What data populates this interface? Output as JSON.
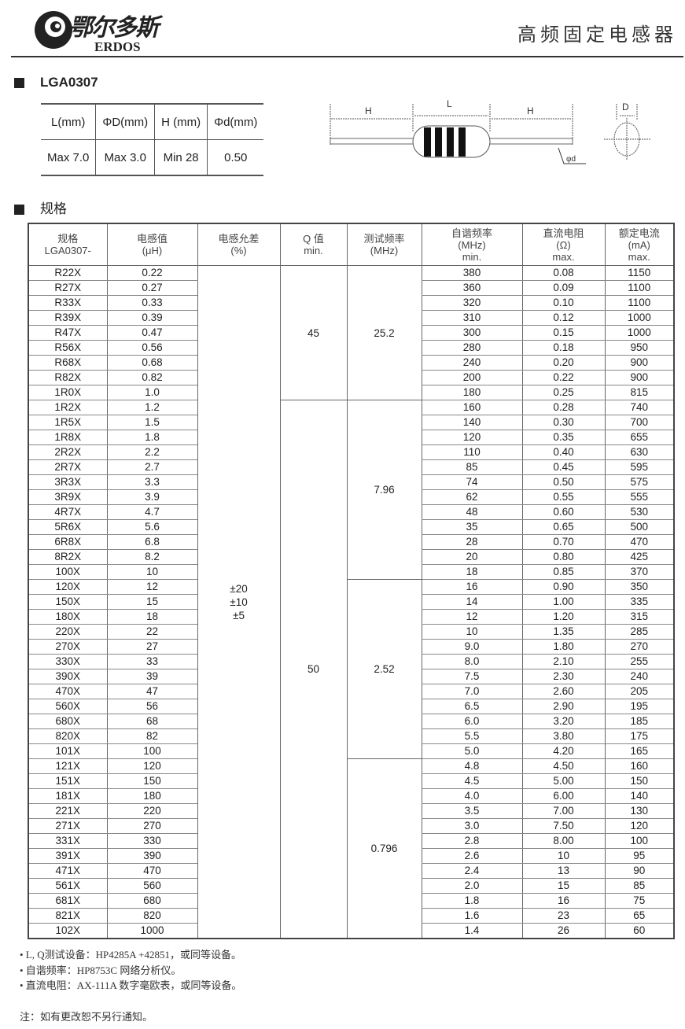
{
  "header": {
    "logo_cn": "鄂尔多斯",
    "logo_en": "ERDOS",
    "title": "高频固定电感器"
  },
  "section1": {
    "title": "LGA0307",
    "dims": {
      "headers": [
        "L(mm)",
        "ΦD(mm)",
        "H (mm)",
        "Φd(mm)"
      ],
      "values": [
        "Max 7.0",
        "Max 3.0",
        "Min 28",
        "0.50"
      ]
    },
    "diagram": {
      "label_h": "H",
      "label_l": "L",
      "label_d": "D",
      "label_wire": "φd"
    }
  },
  "section2": {
    "title": "规格"
  },
  "spec": {
    "headers": [
      [
        "规格",
        "LGA0307-"
      ],
      [
        "电感值",
        "(μH)"
      ],
      [
        "电感允差",
        "(%)"
      ],
      [
        "Q 值",
        "min."
      ],
      [
        "测试频率",
        "(MHz)"
      ],
      [
        "自谐频率",
        "(MHz)",
        "min."
      ],
      [
        "直流电阻",
        "(Ω)",
        "max."
      ],
      [
        "额定电流",
        "(mA)",
        "max."
      ]
    ],
    "tolerance": [
      "±20",
      "±10",
      "±5"
    ],
    "q_groups": [
      {
        "value": "45",
        "rows": 9
      },
      {
        "value": "50",
        "rows": 36
      }
    ],
    "freq_groups": [
      {
        "value": "25.2",
        "rows": 9
      },
      {
        "value": "7.96",
        "rows": 12
      },
      {
        "value": "2.52",
        "rows": 12
      },
      {
        "value": "0.796",
        "rows": 12
      }
    ],
    "rows": [
      [
        "R22X",
        "0.22",
        "380",
        "0.08",
        "1150"
      ],
      [
        "R27X",
        "0.27",
        "360",
        "0.09",
        "1100"
      ],
      [
        "R33X",
        "0.33",
        "320",
        "0.10",
        "1100"
      ],
      [
        "R39X",
        "0.39",
        "310",
        "0.12",
        "1000"
      ],
      [
        "R47X",
        "0.47",
        "300",
        "0.15",
        "1000"
      ],
      [
        "R56X",
        "0.56",
        "280",
        "0.18",
        "950"
      ],
      [
        "R68X",
        "0.68",
        "240",
        "0.20",
        "900"
      ],
      [
        "R82X",
        "0.82",
        "200",
        "0.22",
        "900"
      ],
      [
        "1R0X",
        "1.0",
        "180",
        "0.25",
        "815"
      ],
      [
        "1R2X",
        "1.2",
        "160",
        "0.28",
        "740"
      ],
      [
        "1R5X",
        "1.5",
        "140",
        "0.30",
        "700"
      ],
      [
        "1R8X",
        "1.8",
        "120",
        "0.35",
        "655"
      ],
      [
        "2R2X",
        "2.2",
        "110",
        "0.40",
        "630"
      ],
      [
        "2R7X",
        "2.7",
        "85",
        "0.45",
        "595"
      ],
      [
        "3R3X",
        "3.3",
        "74",
        "0.50",
        "575"
      ],
      [
        "3R9X",
        "3.9",
        "62",
        "0.55",
        "555"
      ],
      [
        "4R7X",
        "4.7",
        "48",
        "0.60",
        "530"
      ],
      [
        "5R6X",
        "5.6",
        "35",
        "0.65",
        "500"
      ],
      [
        "6R8X",
        "6.8",
        "28",
        "0.70",
        "470"
      ],
      [
        "8R2X",
        "8.2",
        "20",
        "0.80",
        "425"
      ],
      [
        "100X",
        "10",
        "18",
        "0.85",
        "370"
      ],
      [
        "120X",
        "12",
        "16",
        "0.90",
        "350"
      ],
      [
        "150X",
        "15",
        "14",
        "1.00",
        "335"
      ],
      [
        "180X",
        "18",
        "12",
        "1.20",
        "315"
      ],
      [
        "220X",
        "22",
        "10",
        "1.35",
        "285"
      ],
      [
        "270X",
        "27",
        "9.0",
        "1.80",
        "270"
      ],
      [
        "330X",
        "33",
        "8.0",
        "2.10",
        "255"
      ],
      [
        "390X",
        "39",
        "7.5",
        "2.30",
        "240"
      ],
      [
        "470X",
        "47",
        "7.0",
        "2.60",
        "205"
      ],
      [
        "560X",
        "56",
        "6.5",
        "2.90",
        "195"
      ],
      [
        "680X",
        "68",
        "6.0",
        "3.20",
        "185"
      ],
      [
        "820X",
        "82",
        "5.5",
        "3.80",
        "175"
      ],
      [
        "101X",
        "100",
        "5.0",
        "4.20",
        "165"
      ],
      [
        "121X",
        "120",
        "4.8",
        "4.50",
        "160"
      ],
      [
        "151X",
        "150",
        "4.5",
        "5.00",
        "150"
      ],
      [
        "181X",
        "180",
        "4.0",
        "6.00",
        "140"
      ],
      [
        "221X",
        "220",
        "3.5",
        "7.00",
        "130"
      ],
      [
        "271X",
        "270",
        "3.0",
        "7.50",
        "120"
      ],
      [
        "331X",
        "330",
        "2.8",
        "8.00",
        "100"
      ],
      [
        "391X",
        "390",
        "2.6",
        "10",
        "95"
      ],
      [
        "471X",
        "470",
        "2.4",
        "13",
        "90"
      ],
      [
        "561X",
        "560",
        "2.0",
        "15",
        "85"
      ],
      [
        "681X",
        "680",
        "1.8",
        "16",
        "75"
      ],
      [
        "821X",
        "820",
        "1.6",
        "23",
        "65"
      ],
      [
        "102X",
        "1000",
        "1.4",
        "26",
        "60"
      ]
    ]
  },
  "notes": [
    "• L, Q测试设备：HP4285A +42851，或同等设备。",
    "• 自谐频率：HP8753C 网络分析仪。",
    "• 直流电阻：AX-111A 数字毫欧表，或同等设备。"
  ],
  "footer": "注：如有更改恕不另行通知。"
}
